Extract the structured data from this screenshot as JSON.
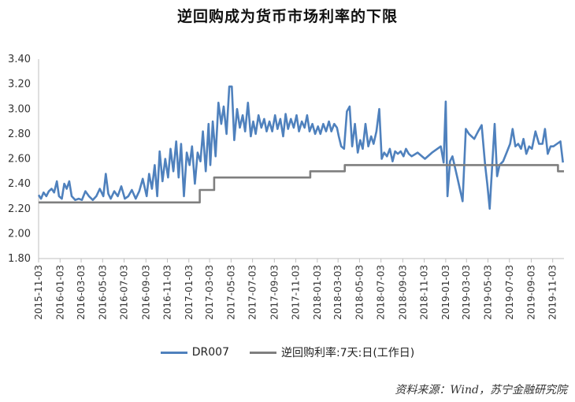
{
  "chart_data": {
    "type": "line",
    "title": "逆回购成为货币市场利率的下限",
    "ylim": [
      1.8,
      3.4
    ],
    "yticks": [
      "3.40",
      "3.20",
      "3.00",
      "2.80",
      "2.60",
      "2.40",
      "2.20",
      "2.00",
      "1.80"
    ],
    "xticks": [
      "2015-11-03",
      "2016-01-03",
      "2016-03-03",
      "2016-05-03",
      "2016-07-03",
      "2016-09-03",
      "2016-11-03",
      "2017-01-03",
      "2017-03-03",
      "2017-05-03",
      "2017-07-03",
      "2017-09-03",
      "2017-11-03",
      "2018-01-03",
      "2018-03-03",
      "2018-05-03",
      "2018-07-03",
      "2018-09-03",
      "2018-11-03",
      "2019-01-03",
      "2019-03-03",
      "2019-05-03",
      "2019-07-03",
      "2019-09-03",
      "2019-11-03"
    ],
    "xlim": [
      "2015-11-03",
      "2019-12-05"
    ],
    "grid": false,
    "legend_placement": "bottom",
    "series": [
      {
        "name": "DR007",
        "color": "#4f81bd",
        "points": [
          [
            "2015-11-03",
            2.31
          ],
          [
            "2015-11-10",
            2.28
          ],
          [
            "2015-11-17",
            2.33
          ],
          [
            "2015-11-25",
            2.3
          ],
          [
            "2015-12-02",
            2.34
          ],
          [
            "2015-12-10",
            2.36
          ],
          [
            "2015-12-17",
            2.33
          ],
          [
            "2015-12-25",
            2.42
          ],
          [
            "2015-12-31",
            2.3
          ],
          [
            "2016-01-08",
            2.28
          ],
          [
            "2016-01-15",
            2.4
          ],
          [
            "2016-01-22",
            2.36
          ],
          [
            "2016-01-29",
            2.42
          ],
          [
            "2016-02-05",
            2.3
          ],
          [
            "2016-02-15",
            2.27
          ],
          [
            "2016-02-25",
            2.28
          ],
          [
            "2016-03-05",
            2.27
          ],
          [
            "2016-03-15",
            2.34
          ],
          [
            "2016-03-25",
            2.3
          ],
          [
            "2016-04-05",
            2.27
          ],
          [
            "2016-04-15",
            2.3
          ],
          [
            "2016-04-25",
            2.36
          ],
          [
            "2016-05-05",
            2.3
          ],
          [
            "2016-05-12",
            2.48
          ],
          [
            "2016-05-19",
            2.32
          ],
          [
            "2016-05-26",
            2.28
          ],
          [
            "2016-06-05",
            2.34
          ],
          [
            "2016-06-15",
            2.3
          ],
          [
            "2016-06-25",
            2.38
          ],
          [
            "2016-07-05",
            2.28
          ],
          [
            "2016-07-15",
            2.3
          ],
          [
            "2016-07-25",
            2.35
          ],
          [
            "2016-08-05",
            2.28
          ],
          [
            "2016-08-15",
            2.34
          ],
          [
            "2016-08-25",
            2.44
          ],
          [
            "2016-09-05",
            2.3
          ],
          [
            "2016-09-12",
            2.48
          ],
          [
            "2016-09-20",
            2.36
          ],
          [
            "2016-09-28",
            2.55
          ],
          [
            "2016-10-05",
            2.3
          ],
          [
            "2016-10-12",
            2.66
          ],
          [
            "2016-10-20",
            2.42
          ],
          [
            "2016-10-28",
            2.6
          ],
          [
            "2016-11-05",
            2.45
          ],
          [
            "2016-11-12",
            2.68
          ],
          [
            "2016-11-20",
            2.5
          ],
          [
            "2016-11-28",
            2.74
          ],
          [
            "2016-12-05",
            2.45
          ],
          [
            "2016-12-12",
            2.72
          ],
          [
            "2016-12-20",
            2.3
          ],
          [
            "2016-12-28",
            2.65
          ],
          [
            "2017-01-05",
            2.55
          ],
          [
            "2017-01-12",
            2.7
          ],
          [
            "2017-01-20",
            2.4
          ],
          [
            "2017-01-28",
            2.65
          ],
          [
            "2017-02-05",
            2.58
          ],
          [
            "2017-02-12",
            2.82
          ],
          [
            "2017-02-20",
            2.5
          ],
          [
            "2017-02-28",
            2.88
          ],
          [
            "2017-03-05",
            2.55
          ],
          [
            "2017-03-12",
            2.9
          ],
          [
            "2017-03-20",
            2.62
          ],
          [
            "2017-03-28",
            3.05
          ],
          [
            "2017-04-05",
            2.88
          ],
          [
            "2017-04-12",
            3.02
          ],
          [
            "2017-04-20",
            2.8
          ],
          [
            "2017-04-28",
            3.18
          ],
          [
            "2017-05-05",
            3.18
          ],
          [
            "2017-05-12",
            2.75
          ],
          [
            "2017-05-20",
            3.0
          ],
          [
            "2017-05-28",
            2.85
          ],
          [
            "2017-06-05",
            2.95
          ],
          [
            "2017-06-12",
            2.82
          ],
          [
            "2017-06-20",
            3.05
          ],
          [
            "2017-06-28",
            2.78
          ],
          [
            "2017-07-05",
            2.9
          ],
          [
            "2017-07-12",
            2.8
          ],
          [
            "2017-07-20",
            2.95
          ],
          [
            "2017-07-28",
            2.85
          ],
          [
            "2017-08-05",
            2.92
          ],
          [
            "2017-08-12",
            2.82
          ],
          [
            "2017-08-20",
            2.9
          ],
          [
            "2017-08-28",
            2.82
          ],
          [
            "2017-09-05",
            2.95
          ],
          [
            "2017-09-12",
            2.84
          ],
          [
            "2017-09-20",
            2.92
          ],
          [
            "2017-09-28",
            2.78
          ],
          [
            "2017-10-05",
            2.96
          ],
          [
            "2017-10-12",
            2.84
          ],
          [
            "2017-10-20",
            2.92
          ],
          [
            "2017-10-28",
            2.85
          ],
          [
            "2017-11-05",
            2.95
          ],
          [
            "2017-11-12",
            2.82
          ],
          [
            "2017-11-20",
            2.9
          ],
          [
            "2017-11-28",
            2.85
          ],
          [
            "2017-12-05",
            2.95
          ],
          [
            "2017-12-12",
            2.82
          ],
          [
            "2017-12-20",
            2.88
          ],
          [
            "2017-12-28",
            2.8
          ],
          [
            "2018-01-05",
            2.86
          ],
          [
            "2018-01-12",
            2.8
          ],
          [
            "2018-01-20",
            2.88
          ],
          [
            "2018-01-28",
            2.82
          ],
          [
            "2018-02-05",
            2.9
          ],
          [
            "2018-02-12",
            2.82
          ],
          [
            "2018-02-20",
            2.88
          ],
          [
            "2018-02-28",
            2.85
          ],
          [
            "2018-03-05",
            2.78
          ],
          [
            "2018-03-12",
            2.7
          ],
          [
            "2018-03-20",
            2.68
          ],
          [
            "2018-03-28",
            2.98
          ],
          [
            "2018-04-05",
            3.02
          ],
          [
            "2018-04-12",
            2.7
          ],
          [
            "2018-04-20",
            2.88
          ],
          [
            "2018-04-28",
            2.65
          ],
          [
            "2018-05-05",
            2.75
          ],
          [
            "2018-05-12",
            2.68
          ],
          [
            "2018-05-20",
            2.88
          ],
          [
            "2018-05-28",
            2.7
          ],
          [
            "2018-06-05",
            2.78
          ],
          [
            "2018-06-12",
            2.72
          ],
          [
            "2018-06-20",
            2.82
          ],
          [
            "2018-06-28",
            3.0
          ],
          [
            "2018-07-05",
            2.6
          ],
          [
            "2018-07-12",
            2.65
          ],
          [
            "2018-07-20",
            2.62
          ],
          [
            "2018-07-28",
            2.68
          ],
          [
            "2018-08-05",
            2.58
          ],
          [
            "2018-08-12",
            2.66
          ],
          [
            "2018-08-20",
            2.64
          ],
          [
            "2018-08-28",
            2.66
          ],
          [
            "2018-09-05",
            2.62
          ],
          [
            "2018-09-12",
            2.68
          ],
          [
            "2018-09-20",
            2.64
          ],
          [
            "2018-09-28",
            2.62
          ],
          [
            "2018-10-15",
            2.65
          ],
          [
            "2018-11-05",
            2.6
          ],
          [
            "2018-11-25",
            2.65
          ],
          [
            "2018-12-20",
            2.7
          ],
          [
            "2018-12-28",
            2.57
          ],
          [
            "2019-01-03",
            3.06
          ],
          [
            "2019-01-08",
            2.3
          ],
          [
            "2019-01-15",
            2.58
          ],
          [
            "2019-01-22",
            2.62
          ],
          [
            "2019-02-05",
            2.45
          ],
          [
            "2019-02-20",
            2.26
          ],
          [
            "2019-03-01",
            2.84
          ],
          [
            "2019-03-10",
            2.8
          ],
          [
            "2019-03-25",
            2.76
          ],
          [
            "2019-04-05",
            2.82
          ],
          [
            "2019-04-15",
            2.87
          ],
          [
            "2019-04-25",
            2.55
          ],
          [
            "2019-05-01",
            2.4
          ],
          [
            "2019-05-08",
            2.2
          ],
          [
            "2019-05-15",
            2.55
          ],
          [
            "2019-05-22",
            2.88
          ],
          [
            "2019-05-29",
            2.46
          ],
          [
            "2019-06-05",
            2.55
          ],
          [
            "2019-06-15",
            2.58
          ],
          [
            "2019-06-25",
            2.65
          ],
          [
            "2019-07-05",
            2.72
          ],
          [
            "2019-07-12",
            2.84
          ],
          [
            "2019-07-20",
            2.7
          ],
          [
            "2019-07-28",
            2.72
          ],
          [
            "2019-08-05",
            2.68
          ],
          [
            "2019-08-12",
            2.76
          ],
          [
            "2019-08-20",
            2.64
          ],
          [
            "2019-08-28",
            2.7
          ],
          [
            "2019-09-05",
            2.68
          ],
          [
            "2019-09-15",
            2.82
          ],
          [
            "2019-09-25",
            2.72
          ],
          [
            "2019-10-05",
            2.72
          ],
          [
            "2019-10-12",
            2.84
          ],
          [
            "2019-10-20",
            2.64
          ],
          [
            "2019-10-28",
            2.7
          ],
          [
            "2019-11-05",
            2.7
          ],
          [
            "2019-11-15",
            2.72
          ],
          [
            "2019-11-25",
            2.74
          ],
          [
            "2019-12-02",
            2.57
          ]
        ]
      },
      {
        "name": "逆回购利率:7天:日(工作日)",
        "color": "#7f7f7f",
        "points": [
          [
            "2015-11-03",
            2.25
          ],
          [
            "2017-02-03",
            2.25
          ],
          [
            "2017-02-03",
            2.35
          ],
          [
            "2017-03-16",
            2.35
          ],
          [
            "2017-03-16",
            2.45
          ],
          [
            "2017-12-14",
            2.45
          ],
          [
            "2017-12-14",
            2.5
          ],
          [
            "2018-03-22",
            2.5
          ],
          [
            "2018-03-22",
            2.55
          ],
          [
            "2019-11-18",
            2.55
          ],
          [
            "2019-11-18",
            2.5
          ],
          [
            "2019-12-05",
            2.5
          ]
        ]
      }
    ]
  },
  "legend": {
    "series1": "DR007",
    "series2": "逆回购利率:7天:日(工作日)"
  },
  "source_note": "资料来源：Wind，苏宁金融研究院"
}
